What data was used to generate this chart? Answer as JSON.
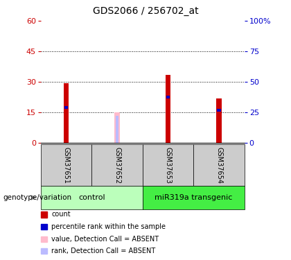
{
  "title": "GDS2066 / 256702_at",
  "samples": [
    "GSM37651",
    "GSM37652",
    "GSM37653",
    "GSM37654"
  ],
  "count_values": [
    29.5,
    0,
    33.5,
    22.0
  ],
  "rank_values": [
    17.5,
    0,
    22.5,
    16.0
  ],
  "absent_count_values": [
    0,
    15.0,
    0,
    0
  ],
  "absent_rank_values": [
    0,
    13.5,
    0,
    0
  ],
  "is_absent": [
    false,
    true,
    false,
    false
  ],
  "groups": [
    {
      "label": "control",
      "samples": [
        0,
        1
      ],
      "color": "#bbffbb"
    },
    {
      "label": "miR319a transgenic",
      "samples": [
        2,
        3
      ],
      "color": "#44ee44"
    }
  ],
  "ylim_left": [
    0,
    60
  ],
  "ylim_right": [
    0,
    100
  ],
  "yticks_left": [
    0,
    15,
    30,
    45,
    60
  ],
  "yticks_right": [
    0,
    25,
    50,
    75,
    100
  ],
  "bar_color_red": "#cc0000",
  "bar_color_blue": "#0000cc",
  "bar_color_pink": "#ffbbcc",
  "bar_color_lightblue": "#bbbbff",
  "sample_box_color": "#cccccc",
  "legend_items": [
    {
      "label": "count",
      "color": "#cc0000"
    },
    {
      "label": "percentile rank within the sample",
      "color": "#0000cc"
    },
    {
      "label": "value, Detection Call = ABSENT",
      "color": "#ffbbcc"
    },
    {
      "label": "rank, Detection Call = ABSENT",
      "color": "#bbbbff"
    }
  ],
  "group_label_x": "genotype/variation",
  "left_ylabel_color": "#cc0000",
  "right_ylabel_color": "#0000cc"
}
